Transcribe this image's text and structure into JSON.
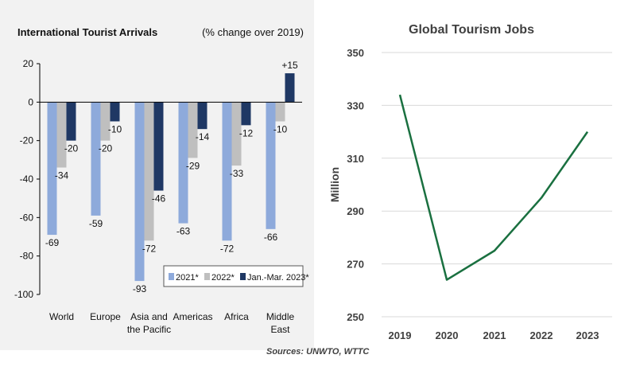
{
  "chart_data": [
    {
      "type": "bar",
      "title": "International Tourist Arrivals",
      "subtitle": "(% change over 2019)",
      "categories": [
        [
          "World"
        ],
        [
          "Europe"
        ],
        [
          "Asia and",
          "the Pacific"
        ],
        [
          "Americas"
        ],
        [
          "Africa"
        ],
        [
          "Middle",
          "East"
        ]
      ],
      "series": [
        {
          "name": "2021*",
          "color": "#8eaadb",
          "values": [
            -69,
            -59,
            -93,
            -63,
            -72,
            -66
          ]
        },
        {
          "name": "2022*",
          "color": "#bfbfbf",
          "values": [
            -34,
            -20,
            -72,
            -29,
            -33,
            -10
          ]
        },
        {
          "name": "Jan.-Mar. 2023*",
          "color": "#1f3864",
          "values": [
            -20,
            -10,
            -46,
            -14,
            -12,
            15
          ]
        }
      ],
      "value_labels": [
        [
          "-69",
          "-59",
          "-93",
          "-63",
          "-72",
          "-66"
        ],
        [
          "-34",
          "-20",
          "-72",
          "-29",
          "-33",
          "-10"
        ],
        [
          "-20",
          "-10",
          "-46",
          "-14",
          "-12",
          "+15"
        ]
      ],
      "yticks": [
        20,
        0,
        -20,
        -40,
        -60,
        -80,
        -100
      ],
      "ylim": [
        -100,
        20
      ],
      "grid": false,
      "legend_placement": "bottom-right"
    },
    {
      "type": "line",
      "title": "Global Tourism Jobs",
      "x": [
        "2019",
        "2020",
        "2021",
        "2022",
        "2023"
      ],
      "ylabel": "Million",
      "series": [
        {
          "color": "#1a7040",
          "values": [
            334,
            264,
            275,
            295,
            320
          ]
        }
      ],
      "yticks": [
        250,
        270,
        290,
        310,
        330,
        350
      ],
      "ylim": [
        250,
        350
      ],
      "grid": true
    }
  ],
  "footer": {
    "source": "Sources: UNWTO, WTTC"
  }
}
